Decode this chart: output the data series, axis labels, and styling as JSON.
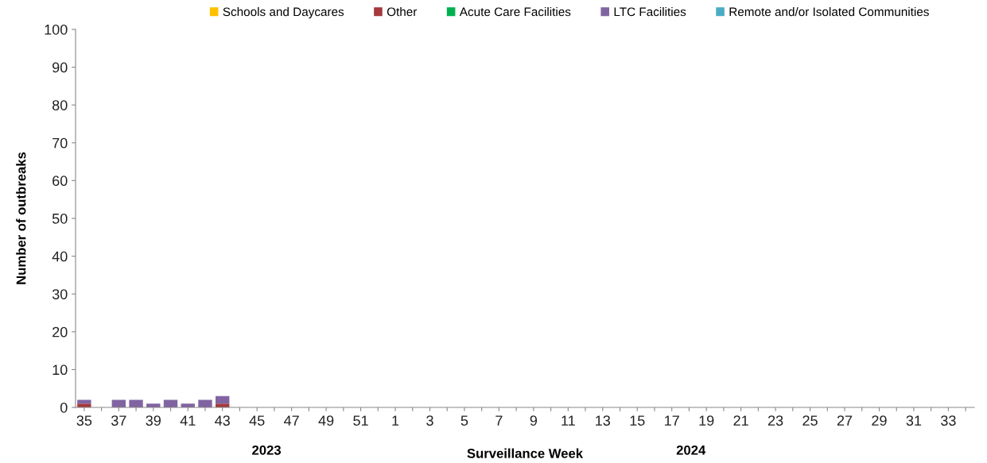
{
  "chart_data": {
    "type": "bar",
    "stacked": true,
    "xlabel": "Surveillance Week",
    "ylabel": "Number of outbreaks",
    "categories": [
      "35",
      null,
      "37",
      null,
      "39",
      null,
      "41",
      null,
      "43",
      null,
      "45",
      null,
      "47",
      null,
      "49",
      null,
      "51",
      null,
      "1",
      null,
      "3",
      null,
      "5",
      null,
      "7",
      null,
      "9",
      null,
      "11",
      null,
      "13",
      null,
      "15",
      null,
      "17",
      null,
      "19",
      null,
      "21",
      null,
      "23",
      null,
      "25",
      null,
      "27",
      null,
      "29",
      null,
      "31",
      null,
      "33",
      null
    ],
    "series": [
      {
        "name": "Schools and Daycares",
        "color": "#ffc000",
        "values": [
          0,
          0,
          0,
          0,
          0,
          0,
          0,
          0,
          0,
          null,
          null,
          null,
          null,
          null,
          null,
          null,
          null,
          null,
          null,
          null,
          null,
          null,
          null,
          null,
          null,
          null,
          null,
          null,
          null,
          null,
          null,
          null,
          null,
          null,
          null,
          null,
          null,
          null,
          null,
          null,
          null,
          null,
          null,
          null,
          null,
          null,
          null,
          null,
          null,
          null,
          null,
          null
        ]
      },
      {
        "name": "Other",
        "color": "#a5393b",
        "values": [
          1,
          0,
          0,
          0,
          0,
          0,
          0,
          0,
          1,
          null,
          null,
          null,
          null,
          null,
          null,
          null,
          null,
          null,
          null,
          null,
          null,
          null,
          null,
          null,
          null,
          null,
          null,
          null,
          null,
          null,
          null,
          null,
          null,
          null,
          null,
          null,
          null,
          null,
          null,
          null,
          null,
          null,
          null,
          null,
          null,
          null,
          null,
          null,
          null,
          null,
          null,
          null
        ]
      },
      {
        "name": "Acute Care Facilities",
        "color": "#00b050",
        "values": [
          0,
          0,
          0,
          0,
          0,
          0,
          0,
          0,
          0,
          null,
          null,
          null,
          null,
          null,
          null,
          null,
          null,
          null,
          null,
          null,
          null,
          null,
          null,
          null,
          null,
          null,
          null,
          null,
          null,
          null,
          null,
          null,
          null,
          null,
          null,
          null,
          null,
          null,
          null,
          null,
          null,
          null,
          null,
          null,
          null,
          null,
          null,
          null,
          null,
          null,
          null,
          null
        ]
      },
      {
        "name": "LTC Facilities",
        "color": "#8064a2",
        "values": [
          1,
          0,
          2,
          2,
          1,
          2,
          1,
          2,
          2,
          null,
          null,
          null,
          null,
          null,
          null,
          null,
          null,
          null,
          null,
          null,
          null,
          null,
          null,
          null,
          null,
          null,
          null,
          null,
          null,
          null,
          null,
          null,
          null,
          null,
          null,
          null,
          null,
          null,
          null,
          null,
          null,
          null,
          null,
          null,
          null,
          null,
          null,
          null,
          null,
          null,
          null,
          null
        ]
      },
      {
        "name": "Remote and/or Isolated Communities",
        "color": "#4bacc6",
        "values": [
          0,
          0,
          0,
          0,
          0,
          0,
          0,
          0,
          0,
          null,
          null,
          null,
          null,
          null,
          null,
          null,
          null,
          null,
          null,
          null,
          null,
          null,
          null,
          null,
          null,
          null,
          null,
          null,
          null,
          null,
          null,
          null,
          null,
          null,
          null,
          null,
          null,
          null,
          null,
          null,
          null,
          null,
          null,
          null,
          null,
          null,
          null,
          null,
          null,
          null,
          null,
          null
        ]
      }
    ],
    "ylim": [
      0,
      100
    ],
    "yticks": [
      0,
      10,
      20,
      30,
      40,
      50,
      60,
      70,
      80,
      90,
      100
    ],
    "grid": false,
    "legend": "top",
    "annotations": [
      "2023",
      "2024"
    ]
  }
}
